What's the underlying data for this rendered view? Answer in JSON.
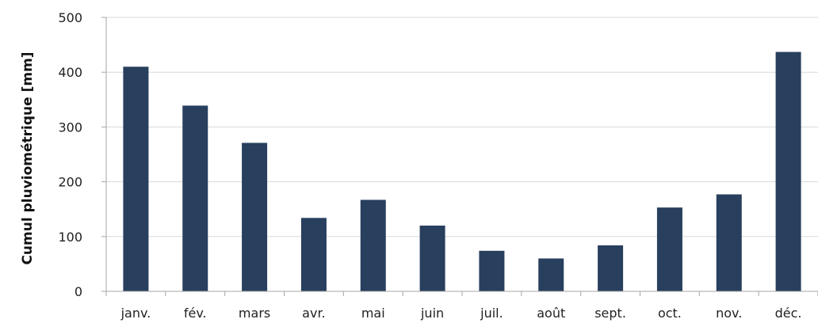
{
  "chart_data": {
    "type": "bar",
    "title": "",
    "xlabel": "",
    "ylabel": "Cumul pluviométrique [mm]",
    "categories": [
      "janv.",
      "fév.",
      "mars",
      "avr.",
      "mai",
      "juin",
      "juil.",
      "août",
      "sept.",
      "oct.",
      "nov.",
      "déc."
    ],
    "values": [
      410,
      339,
      271,
      134,
      167,
      120,
      74,
      60,
      84,
      153,
      177,
      437
    ],
    "ylim": [
      0,
      500
    ],
    "yticks": [
      0,
      100,
      200,
      300,
      400,
      500
    ],
    "grid": "horizontal",
    "legend": "none",
    "colors": {
      "bar": "#283f5d",
      "grid": "#d9d9d9",
      "axis": "#a6a6a6"
    }
  }
}
